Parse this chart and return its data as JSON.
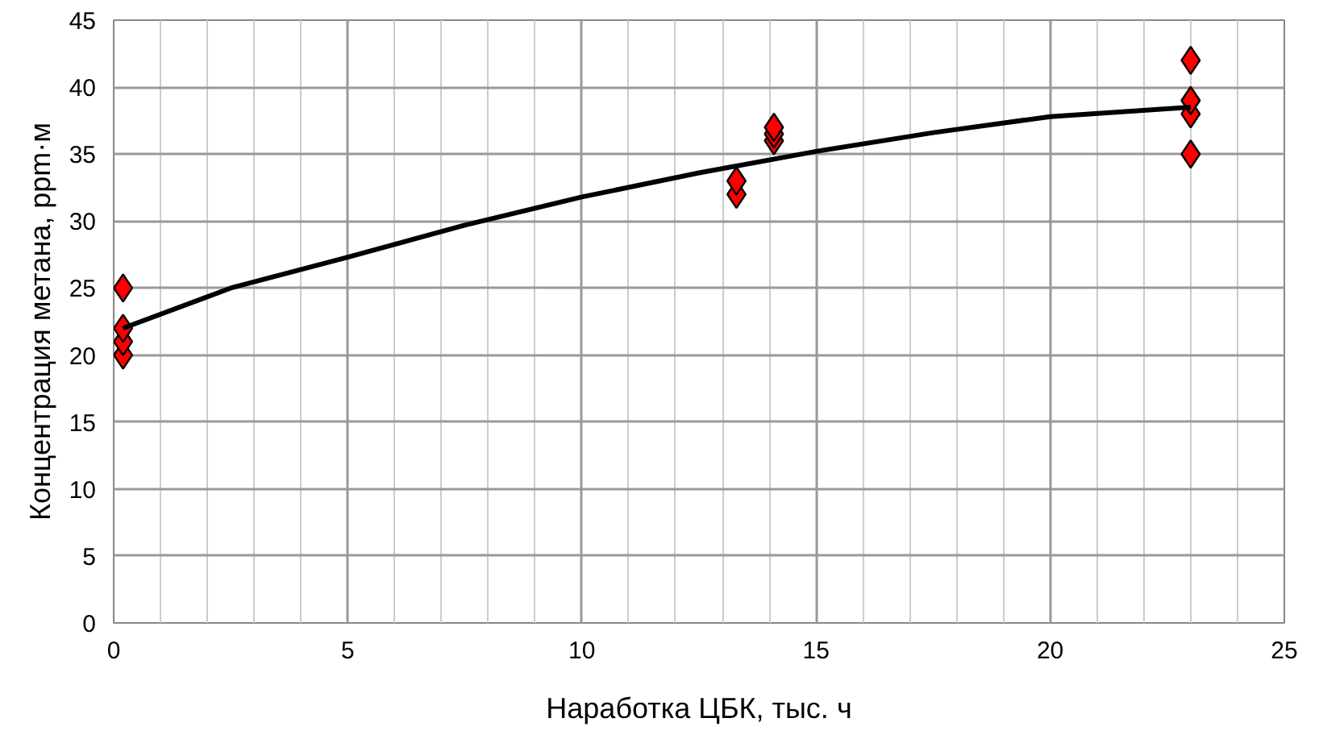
{
  "chart_data": {
    "type": "scatter",
    "xlabel": "Наработка ЦБК, тыс. ч",
    "ylabel": "Концентрация метана, ppm·м",
    "xlim": [
      0,
      25
    ],
    "ylim": [
      0,
      45
    ],
    "xticks": [
      0,
      5,
      10,
      15,
      20,
      25
    ],
    "yticks": [
      0,
      5,
      10,
      15,
      20,
      25,
      30,
      35,
      40,
      45
    ],
    "grid": true,
    "marker": "diamond",
    "series": [
      {
        "color": "#ff0000",
        "x": [
          0.2,
          0.2,
          0.2,
          0.2,
          13.3,
          13.3,
          14.1,
          14.1,
          14.1,
          23,
          23,
          23,
          23
        ],
        "values": [
          20,
          21,
          22,
          25,
          32,
          33,
          36,
          36.5,
          37,
          35,
          38,
          39,
          42
        ]
      },
      {
        "type": "line",
        "color": "#000000",
        "marker": "none",
        "line_style": "solid",
        "x": [
          0.2,
          2.5,
          5,
          7.5,
          10,
          12.5,
          15,
          17.5,
          20,
          23
        ],
        "values": [
          22,
          25,
          27.3,
          29.7,
          31.8,
          33.6,
          35.2,
          36.6,
          37.8,
          38.5
        ]
      }
    ]
  }
}
